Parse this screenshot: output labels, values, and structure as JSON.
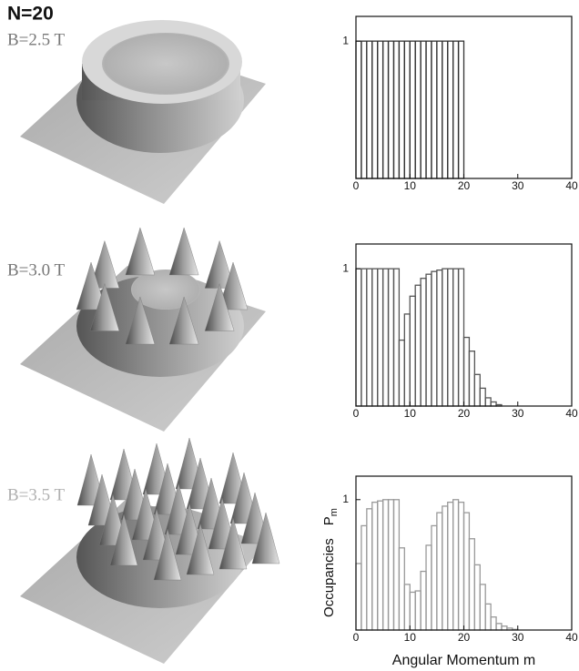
{
  "title": "N=20",
  "chart_data": [
    {
      "type": "histogram",
      "annotation": "B=2.5 T",
      "annotation_color": "#777777",
      "color": "#333333",
      "bins": [
        0,
        1,
        2,
        3,
        4,
        5,
        6,
        7,
        8,
        9,
        10,
        11,
        12,
        13,
        14,
        15,
        16,
        17,
        18,
        19,
        20
      ],
      "values": [
        1,
        1,
        1,
        1,
        1,
        1,
        1,
        1,
        1,
        1,
        1,
        1,
        1,
        1,
        1,
        1,
        1,
        1,
        1,
        1
      ],
      "xlim": [
        0,
        40
      ],
      "xticks": [
        0,
        10,
        20,
        30,
        40
      ],
      "ylim": [
        0,
        1.18
      ],
      "yticks": [
        1
      ]
    },
    {
      "type": "histogram",
      "annotation": "B=3.0 T",
      "annotation_color": "#777777",
      "color": "#555555",
      "bins": [
        0,
        1,
        2,
        3,
        4,
        5,
        6,
        7,
        8,
        9,
        10,
        11,
        12,
        13,
        14,
        15,
        16,
        17,
        18,
        19,
        20,
        21,
        22,
        23,
        24,
        25,
        26,
        27
      ],
      "values": [
        1,
        1,
        1,
        1,
        1,
        1,
        1,
        1,
        0.48,
        0.67,
        0.8,
        0.88,
        0.93,
        0.96,
        0.98,
        0.99,
        1,
        1,
        1,
        1,
        0.5,
        0.4,
        0.23,
        0.13,
        0.06,
        0.03,
        0.01
      ],
      "xlim": [
        0,
        40
      ],
      "xticks": [
        0,
        10,
        20,
        30,
        40
      ],
      "ylim": [
        0,
        1.18
      ],
      "yticks": [
        1
      ]
    },
    {
      "type": "histogram",
      "annotation": "B=3.5 T",
      "annotation_color": "#b0b0b0",
      "color": "#999999",
      "bins": [
        0,
        1,
        2,
        3,
        4,
        5,
        6,
        7,
        8,
        9,
        10,
        11,
        12,
        13,
        14,
        15,
        16,
        17,
        18,
        19,
        20,
        21,
        22,
        23,
        24,
        25,
        26,
        27,
        28,
        29,
        30
      ],
      "values": [
        0.51,
        0.8,
        0.93,
        0.98,
        0.99,
        1,
        1,
        1,
        0.63,
        0.35,
        0.29,
        0.3,
        0.45,
        0.65,
        0.8,
        0.9,
        0.95,
        0.98,
        1,
        0.98,
        0.9,
        0.7,
        0.5,
        0.35,
        0.2,
        0.1,
        0.05,
        0.03,
        0.015,
        0.005
      ],
      "xlim": [
        0,
        40
      ],
      "xticks": [
        0,
        10,
        20,
        30,
        40
      ],
      "ylim": [
        0,
        1.18
      ],
      "yticks": [
        1
      ],
      "xlabel": "Angular Momentum m",
      "ylabel": "Occupancies",
      "ylabel_symbol": "P",
      "ylabel_subscript": "m"
    }
  ]
}
